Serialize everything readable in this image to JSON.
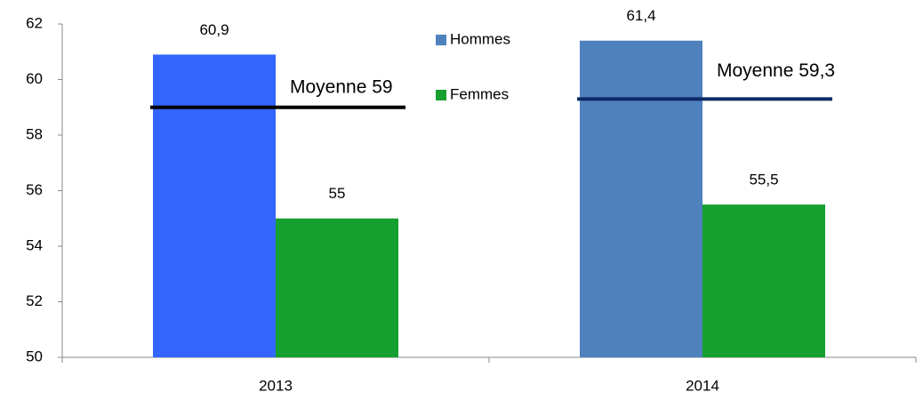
{
  "chart_data": {
    "type": "bar",
    "categories": [
      "2013",
      "2014"
    ],
    "series": [
      {
        "name": "Hommes",
        "color": "#4f81bd",
        "colors": [
          "#3366ff",
          "#4f81bd"
        ],
        "values": [
          60.9,
          61.4
        ],
        "value_labels": [
          "60,9",
          "61,4"
        ]
      },
      {
        "name": "Femmes",
        "color": "#16a02f",
        "values": [
          55,
          55.5
        ],
        "value_labels": [
          "55",
          "55,5"
        ]
      }
    ],
    "averages": {
      "values": [
        59,
        59.3
      ],
      "labels": [
        "Moyenne 59",
        "Moyenne 59,3"
      ],
      "colors": [
        "#000000",
        "#0d2a66"
      ]
    },
    "ylim": [
      50,
      62
    ],
    "yticks": [
      50,
      52,
      54,
      56,
      58,
      60,
      62
    ],
    "grid": false,
    "legend": "top-center"
  }
}
